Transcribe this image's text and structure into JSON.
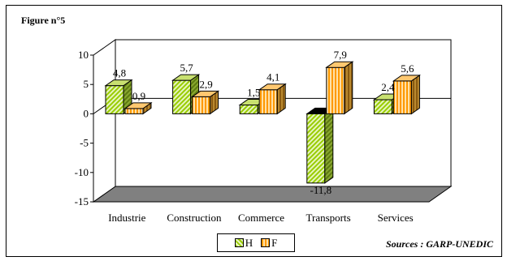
{
  "figure_label": "Figure n°5",
  "source": "Sources : GARP-UNEDIC",
  "colors": {
    "H": "#99cc00",
    "F": "#ff9900",
    "floor": "#808080",
    "wall": "#ffffff"
  },
  "chart_data": {
    "type": "bar",
    "categories": [
      "Industrie",
      "Construction",
      "Commerce",
      "Transports",
      "Services"
    ],
    "series": [
      {
        "name": "H",
        "values": [
          4.8,
          5.7,
          1.5,
          -11.8,
          2.4
        ],
        "labels": [
          "4,8",
          "5,7",
          "1,5",
          "-11,8",
          "2,4"
        ]
      },
      {
        "name": "F",
        "values": [
          0.9,
          2.9,
          4.1,
          7.9,
          5.6
        ],
        "labels": [
          "0,9",
          "2,9",
          "4,1",
          "7,9",
          "5,6"
        ]
      }
    ],
    "ylim": [
      -15,
      10
    ],
    "yticks": [
      "10",
      "5",
      "0",
      "-5",
      "-10",
      "-15"
    ],
    "ytick_values": [
      10,
      5,
      0,
      -5,
      -10,
      -15
    ],
    "legend": [
      "H",
      "F"
    ],
    "legend_position": "bottom",
    "grid": false
  }
}
